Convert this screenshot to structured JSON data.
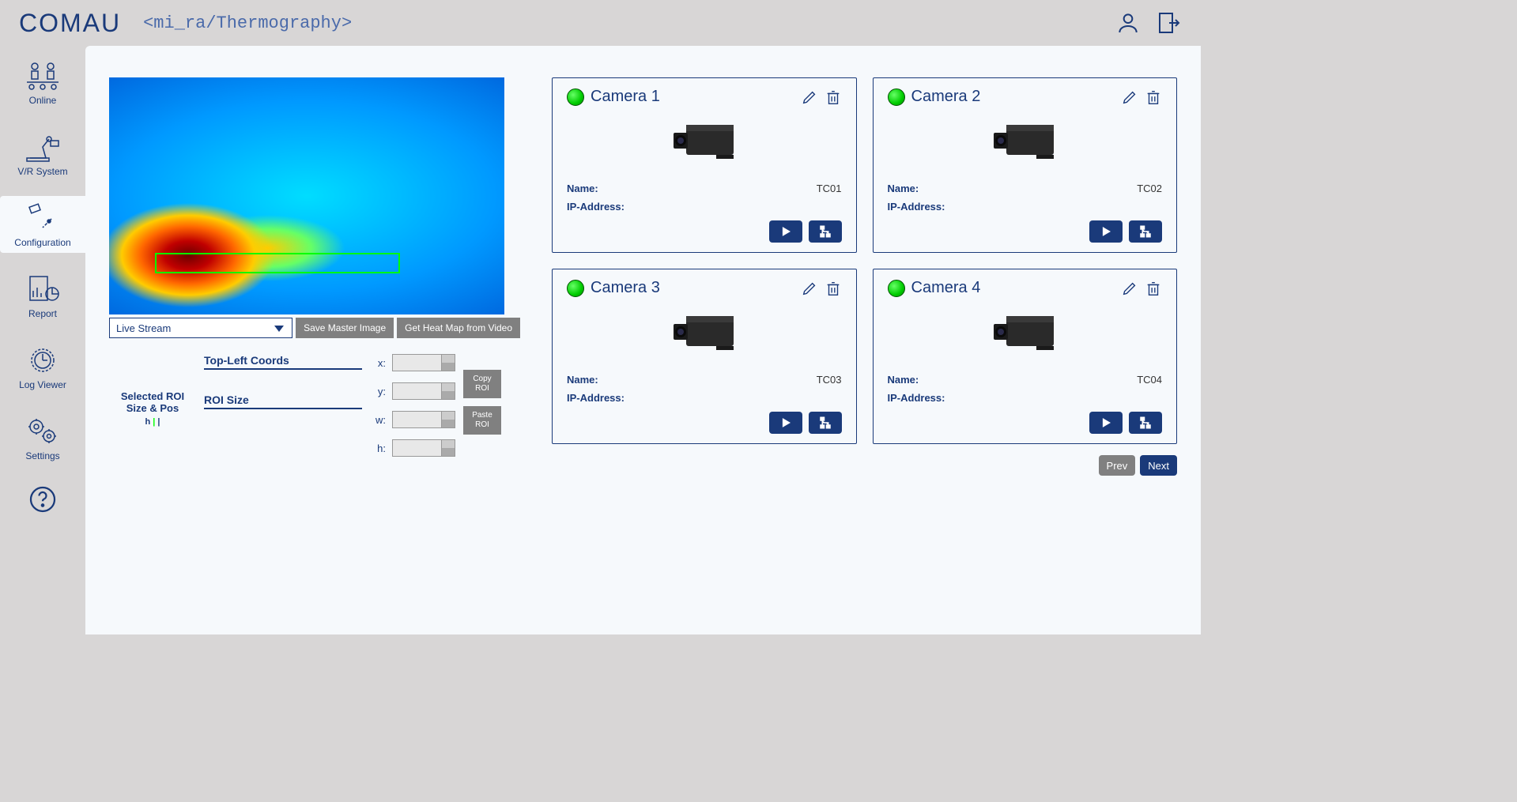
{
  "header": {
    "logo": "COMAU",
    "app_title": "<mi_ra/Thermography>"
  },
  "sidebar": {
    "items": [
      {
        "label": "Online",
        "name": "nav-online"
      },
      {
        "label": "V/R System",
        "name": "nav-vr-system"
      },
      {
        "label": "Configuration",
        "name": "nav-configuration"
      },
      {
        "label": "Report",
        "name": "nav-report"
      },
      {
        "label": "Log Viewer",
        "name": "nav-log-viewer"
      },
      {
        "label": "Settings",
        "name": "nav-settings"
      }
    ],
    "active_index": 2
  },
  "left_panel": {
    "dropdown_value": "Live Stream",
    "save_master_label": "Save Master Image",
    "heatmap_label": "Get Heat Map from Video",
    "roi_title": "Selected ROI\nSize & Pos",
    "roi_h_marker": "h",
    "top_left_label": "Top-Left Coords",
    "roi_size_label": "ROI Size",
    "inputs": {
      "x": "x:",
      "y": "y:",
      "w": "w:",
      "h": "h:"
    },
    "copy_roi": "Copy\nROI",
    "paste_roi": "Paste\nROI"
  },
  "cameras": [
    {
      "title": "Camera 1",
      "name": "TC01",
      "ip": "",
      "status": "online"
    },
    {
      "title": "Camera 2",
      "name": "TC02",
      "ip": "",
      "status": "online"
    },
    {
      "title": "Camera 3",
      "name": "TC03",
      "ip": "",
      "status": "online"
    },
    {
      "title": "Camera 4",
      "name": "TC04",
      "ip": "",
      "status": "online"
    }
  ],
  "card_labels": {
    "name": "Name:",
    "ip": "IP-Address:"
  },
  "pager": {
    "prev": "Prev",
    "next": "Next"
  },
  "colors": {
    "accent": "#1a3a7a",
    "panel_bg": "#f6f9fc",
    "body_bg": "#d8d6d6",
    "gray_btn": "#808080",
    "status_online": "#00cc00"
  }
}
